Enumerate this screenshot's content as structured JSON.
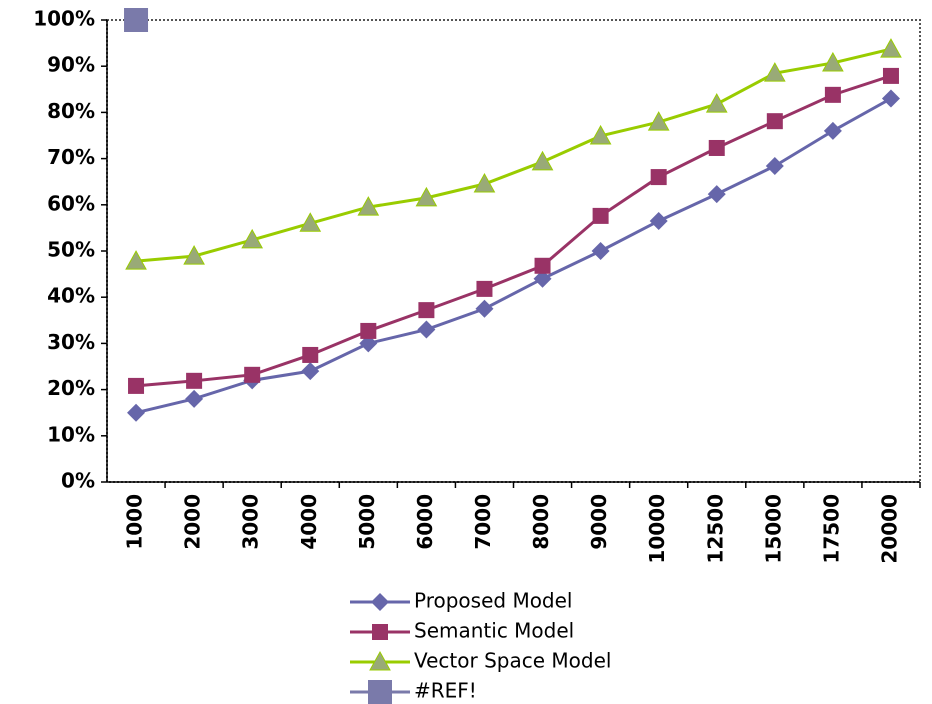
{
  "chart_data": {
    "type": "line",
    "categories": [
      "1000",
      "2000",
      "3000",
      "4000",
      "5000",
      "6000",
      "7000",
      "8000",
      "9000",
      "10000",
      "12500",
      "15000",
      "17500",
      "20000"
    ],
    "ylim": [
      0,
      100
    ],
    "yticks": [
      {
        "value": 0,
        "label": "0%"
      },
      {
        "value": 10,
        "label": "10%"
      },
      {
        "value": 20,
        "label": "20%"
      },
      {
        "value": 30,
        "label": "30%"
      },
      {
        "value": 40,
        "label": "40%"
      },
      {
        "value": 50,
        "label": "50%"
      },
      {
        "value": 60,
        "label": "60%"
      },
      {
        "value": 70,
        "label": "70%"
      },
      {
        "value": 80,
        "label": "80%"
      },
      {
        "value": 90,
        "label": "90%"
      },
      {
        "value": 100,
        "label": "100%"
      }
    ],
    "grid": false,
    "legend": "bottom",
    "series": [
      {
        "name": "Proposed Model",
        "color": "#6666aa",
        "marker": "diamond",
        "values": [
          15,
          18,
          22,
          24,
          30,
          33,
          37.5,
          44,
          50,
          56.5,
          62.3,
          68.4,
          76,
          83
        ]
      },
      {
        "name": "Semantic Model",
        "color": "#993366",
        "marker": "square",
        "values": [
          20.8,
          21.9,
          23.2,
          27.5,
          32.7,
          37.2,
          41.8,
          46.8,
          57.6,
          66,
          72.3,
          78.1,
          83.8,
          87.9
        ]
      },
      {
        "name": "Vector Space Model",
        "color": "#99cc00",
        "marker": "triangle",
        "values": [
          47.8,
          48.9,
          52.4,
          56,
          59.5,
          61.5,
          64.5,
          69.3,
          74.9,
          77.9,
          81.8,
          88.5,
          90.7,
          93.7
        ]
      },
      {
        "name": "#REF!",
        "color": "#7a7aaa",
        "marker": "bigsquare",
        "values": [
          100,
          null,
          null,
          null,
          null,
          null,
          null,
          null,
          null,
          null,
          null,
          null,
          null,
          null
        ]
      }
    ]
  }
}
